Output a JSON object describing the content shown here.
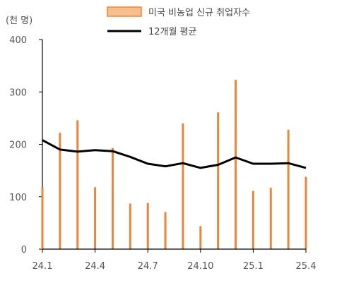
{
  "chart_data": {
    "type": "bar",
    "unit_label": "(천 명)",
    "x_tick_labels": [
      "24.1",
      "24.4",
      "24.7",
      "24.10",
      "25.1",
      "25.4"
    ],
    "y_ticks": [
      0,
      100,
      200,
      300,
      400
    ],
    "ylim": [
      0,
      400
    ],
    "categories": [
      "24.1",
      "24.2",
      "24.3",
      "24.4",
      "24.5",
      "24.6",
      "24.7",
      "24.8",
      "24.9",
      "24.10",
      "24.11",
      "24.12",
      "25.1",
      "25.2",
      "25.3",
      "25.4"
    ],
    "series": [
      {
        "name": "미국 비농업 신규 취업자수",
        "type": "bar",
        "color": "#E8863A",
        "values": [
          118,
          222,
          246,
          118,
          193,
          87,
          88,
          71,
          240,
          44,
          261,
          323,
          111,
          117,
          228,
          138
        ]
      },
      {
        "name": "12개월 평균",
        "type": "line",
        "color": "#000000",
        "values": [
          208,
          190,
          186,
          189,
          187,
          176,
          163,
          158,
          164,
          155,
          161,
          175,
          163,
          163,
          164,
          155
        ]
      }
    ],
    "legend_position": "top",
    "grid": false
  }
}
